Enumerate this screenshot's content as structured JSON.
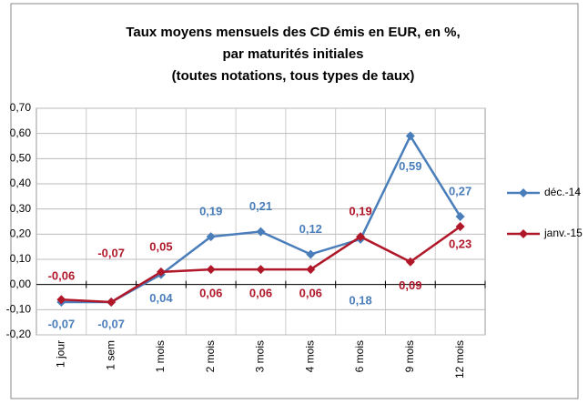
{
  "chart_data": {
    "type": "line",
    "title": [
      "Taux moyens mensuels des CD émis en EUR, en %,",
      "par maturités initiales",
      "(toutes notations, tous types de taux)"
    ],
    "categories": [
      "1 jour",
      "1 sem",
      "1 mois",
      "2 mois",
      "3 mois",
      "4 mois",
      "6 mois",
      "9 mois",
      "12 mois"
    ],
    "series": [
      {
        "name": "déc.-14",
        "color": "#4a7ebb",
        "values": [
          -0.07,
          -0.07,
          0.04,
          0.19,
          0.21,
          0.12,
          0.18,
          0.59,
          0.27
        ],
        "value_labels": [
          "-0,07",
          "-0,07",
          "0,04",
          "0,19",
          "0,21",
          "0,12",
          "0,18",
          "0,59",
          "0,27"
        ]
      },
      {
        "name": "janv.-15",
        "color": "#b0182a",
        "values": [
          -0.06,
          -0.07,
          0.05,
          0.06,
          0.06,
          0.06,
          0.19,
          0.09,
          0.23
        ],
        "value_labels": [
          "-0,06",
          "-0,07",
          "0,05",
          "0,06",
          "0,06",
          "0,06",
          "0,19",
          "0,09",
          "0,23"
        ]
      }
    ],
    "ylim": [
      -0.2,
      0.7
    ],
    "yticks": [
      {
        "value": -0.2,
        "label": "-0,20"
      },
      {
        "value": -0.1,
        "label": "-0,10"
      },
      {
        "value": 0,
        "label": "0,00"
      },
      {
        "value": 0.1,
        "label": "0,10"
      },
      {
        "value": 0.2,
        "label": "0,20"
      },
      {
        "value": 0.3,
        "label": "0,30"
      },
      {
        "value": 0.4,
        "label": "0,40"
      },
      {
        "value": 0.5,
        "label": "0,50"
      },
      {
        "value": 0.6,
        "label": "0,60"
      },
      {
        "value": 0.7,
        "label": "0,70"
      }
    ],
    "grid": true,
    "legend": "right"
  }
}
